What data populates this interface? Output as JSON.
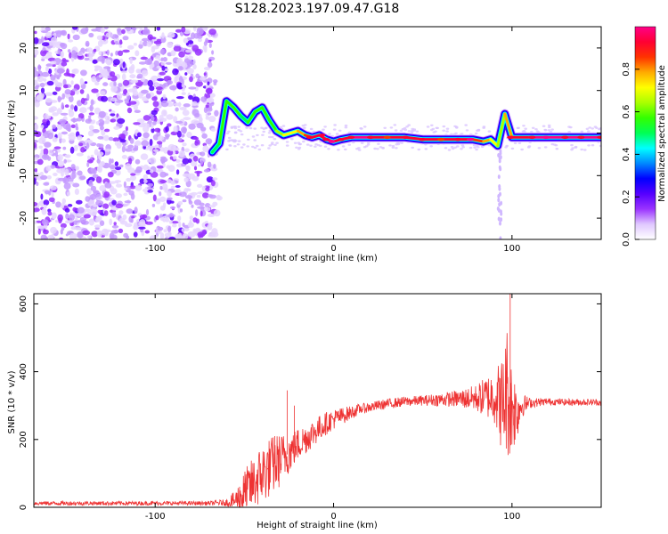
{
  "title": "S128.2023.197.09.47.G18",
  "chart_data": [
    {
      "type": "heatmap",
      "title": "S128.2023.197.09.47.G18",
      "xlabel": "Height of straight line (km)",
      "ylabel": "Frequency (Hz)",
      "xlim": [
        -168,
        150
      ],
      "ylim": [
        -25,
        25
      ],
      "xticks": [
        {
          "v": -100,
          "label": "-100"
        },
        {
          "v": 0,
          "label": "0"
        },
        {
          "v": 100,
          "label": "100"
        }
      ],
      "yticks": [
        {
          "v": -20,
          "label": "-20"
        },
        {
          "v": -10,
          "label": "-10"
        },
        {
          "v": 0,
          "label": "0"
        },
        {
          "v": 10,
          "label": "10"
        },
        {
          "v": 20,
          "label": "20"
        }
      ],
      "colorbar": {
        "label": "Normalized spectral amplitude",
        "range": [
          0,
          1
        ],
        "ticks": [
          {
            "v": 0.0,
            "label": "0.0"
          },
          {
            "v": 0.2,
            "label": "0.2"
          },
          {
            "v": 0.4,
            "label": "0.4"
          },
          {
            "v": 0.6,
            "label": "0.6"
          },
          {
            "v": 0.8,
            "label": "0.8"
          }
        ],
        "colors": [
          "#ffffff",
          "#e0c8ff",
          "#9a33ff",
          "#5500ff",
          "#0000ff",
          "#0088ff",
          "#00ffff",
          "#00ff55",
          "#33ff00",
          "#aaff00",
          "#ffff00",
          "#ffaa00",
          "#ff3300",
          "#ff0033",
          "#ff0088"
        ]
      },
      "ridge": [
        {
          "x": -68,
          "y": -4.5,
          "a": 0.35
        },
        {
          "x": -64,
          "y": -2.5,
          "a": 0.4
        },
        {
          "x": -60,
          "y": 7.5,
          "a": 0.45
        },
        {
          "x": -56,
          "y": 6.0,
          "a": 0.45
        },
        {
          "x": -52,
          "y": 4.0,
          "a": 0.4
        },
        {
          "x": -48,
          "y": 2.5,
          "a": 0.4
        },
        {
          "x": -44,
          "y": 5.0,
          "a": 0.45
        },
        {
          "x": -40,
          "y": 6.0,
          "a": 0.45
        },
        {
          "x": -36,
          "y": 3.0,
          "a": 0.45
        },
        {
          "x": -32,
          "y": 0.5,
          "a": 0.5
        },
        {
          "x": -28,
          "y": -0.5,
          "a": 0.55
        },
        {
          "x": -24,
          "y": 0.0,
          "a": 0.6
        },
        {
          "x": -20,
          "y": 0.5,
          "a": 0.65
        },
        {
          "x": -16,
          "y": -0.5,
          "a": 0.7
        },
        {
          "x": -12,
          "y": -1.0,
          "a": 0.75
        },
        {
          "x": -8,
          "y": -0.5,
          "a": 0.8
        },
        {
          "x": -4,
          "y": -1.5,
          "a": 0.85
        },
        {
          "x": 0,
          "y": -2.0,
          "a": 0.85
        },
        {
          "x": 4,
          "y": -1.5,
          "a": 0.8
        },
        {
          "x": 10,
          "y": -1.0,
          "a": 0.85
        },
        {
          "x": 20,
          "y": -1.0,
          "a": 0.85
        },
        {
          "x": 30,
          "y": -1.0,
          "a": 0.8
        },
        {
          "x": 40,
          "y": -1.0,
          "a": 0.8
        },
        {
          "x": 50,
          "y": -1.5,
          "a": 0.8
        },
        {
          "x": 60,
          "y": -1.5,
          "a": 0.8
        },
        {
          "x": 70,
          "y": -1.5,
          "a": 0.8
        },
        {
          "x": 78,
          "y": -1.5,
          "a": 0.75
        },
        {
          "x": 84,
          "y": -2.0,
          "a": 0.7
        },
        {
          "x": 88,
          "y": -1.5,
          "a": 0.65
        },
        {
          "x": 92,
          "y": -3.0,
          "a": 0.5
        },
        {
          "x": 96,
          "y": 4.5,
          "a": 0.5
        },
        {
          "x": 100,
          "y": -1.0,
          "a": 0.8
        },
        {
          "x": 110,
          "y": -1.0,
          "a": 0.85
        },
        {
          "x": 120,
          "y": -1.0,
          "a": 0.9
        },
        {
          "x": 130,
          "y": -1.0,
          "a": 0.9
        },
        {
          "x": 140,
          "y": -1.0,
          "a": 0.9
        },
        {
          "x": 150,
          "y": -1.0,
          "a": 0.9
        }
      ]
    },
    {
      "type": "line",
      "xlabel": "Height of straight line (km)",
      "ylabel": "SNR (10 * v/v)",
      "xlim": [
        -168,
        150
      ],
      "ylim": [
        0,
        630
      ],
      "xticks": [
        {
          "v": -100,
          "label": "-100"
        },
        {
          "v": 0,
          "label": "0"
        },
        {
          "v": 100,
          "label": "100"
        }
      ],
      "yticks": [
        {
          "v": 0,
          "label": "0"
        },
        {
          "v": 200,
          "label": "200"
        },
        {
          "v": 400,
          "label": "400"
        },
        {
          "v": 600,
          "label": "600"
        }
      ],
      "color": "#ee3333",
      "x": [
        -168,
        -150,
        -130,
        -110,
        -90,
        -70,
        -60,
        -55,
        -50,
        -45,
        -40,
        -35,
        -30,
        -25,
        -20,
        -15,
        -10,
        -5,
        0,
        5,
        10,
        15,
        20,
        25,
        30,
        40,
        50,
        60,
        70,
        80,
        85,
        90,
        95,
        97,
        99,
        101,
        103,
        105,
        110,
        120,
        130,
        140,
        150
      ],
      "y": [
        12,
        12,
        12,
        12,
        12,
        12,
        14,
        20,
        40,
        70,
        100,
        120,
        140,
        160,
        185,
        205,
        225,
        245,
        260,
        270,
        280,
        290,
        295,
        300,
        305,
        312,
        315,
        318,
        320,
        322,
        325,
        330,
        300,
        350,
        300,
        290,
        280,
        300,
        308,
        312,
        310,
        310,
        310
      ],
      "noise": [
        6,
        6,
        6,
        6,
        6,
        6,
        10,
        30,
        70,
        80,
        90,
        90,
        80,
        60,
        50,
        45,
        40,
        35,
        30,
        25,
        20,
        15,
        15,
        15,
        15,
        15,
        15,
        20,
        25,
        40,
        60,
        80,
        150,
        200,
        160,
        120,
        80,
        40,
        15,
        10,
        10,
        10,
        10
      ],
      "spikes": [
        {
          "x": -41,
          "y": 130
        },
        {
          "x": -37,
          "y": 115
        },
        {
          "x": -33,
          "y": 210
        },
        {
          "x": -26,
          "y": 345
        },
        {
          "x": -22,
          "y": 300
        },
        {
          "x": 97,
          "y": 400
        },
        {
          "x": 99,
          "y": 630
        },
        {
          "x": 101,
          "y": 300
        }
      ]
    }
  ]
}
